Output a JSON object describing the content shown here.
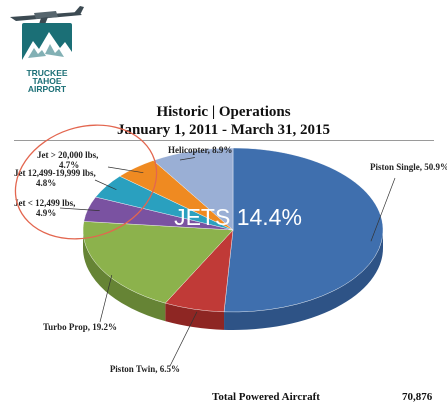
{
  "logo": {
    "name": "truckee-tahoe-airport-logo",
    "lines": [
      "TRUCKEE",
      "TAHOE",
      "AIRPORT"
    ],
    "colors": {
      "badge": "#1b6f76",
      "mountain": "#ffffff",
      "plane": "#3c4a52"
    }
  },
  "chart_data": {
    "type": "pie",
    "title": "Historic | Operations",
    "subtitle": "January 1, 2011 - March 31, 2015",
    "slices": [
      {
        "label": "Piston Single, 50.9%",
        "value": 50.9,
        "color": "#3f6fae",
        "side": "#2e5386"
      },
      {
        "label": "Piston Twin, 6.5%",
        "value": 6.5,
        "color": "#c03a37",
        "side": "#8e2623"
      },
      {
        "label": "Turbo Prop, 19.2%",
        "value": 19.2,
        "color": "#8cb24c",
        "side": "#668435"
      },
      {
        "label": "Jet < 12,499 lbs,\n4.9%",
        "value": 4.9,
        "color": "#7a52a1",
        "side": "#5a3b78"
      },
      {
        "label": "Jet 12,499-19,999 lbs,\n4.8%",
        "value": 4.8,
        "color": "#2aa0bf",
        "side": "#1c7690"
      },
      {
        "label": "Jet > 20,000 lbs,\n4.7%",
        "value": 4.7,
        "color": "#ef8a21",
        "side": "#b86818"
      },
      {
        "label": "Helicopter, 8.9%",
        "value": 8.9,
        "color": "#9aafd5",
        "side": "#7689ad"
      }
    ],
    "annotation": {
      "text": "JETS 14.4%",
      "circle_color": "#e3664f"
    },
    "footer": {
      "label": "Total Powered Aircraft",
      "value": "70,876"
    }
  }
}
